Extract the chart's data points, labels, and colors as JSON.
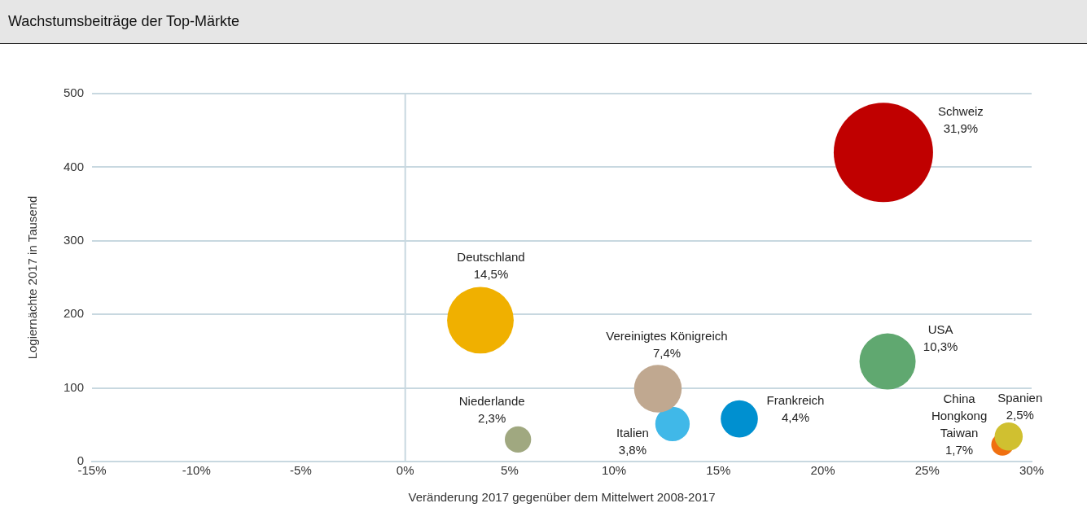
{
  "chart_data": {
    "type": "bubble",
    "title": "Wachstumsbeiträge der Top-Märkte",
    "xlabel": "Veränderung 2017 gegenüber dem Mittelwert 2008-2017",
    "ylabel": "Logiernächte 2017 in Tausend",
    "xlim": [
      -15,
      30
    ],
    "xticks": [
      {
        "value": -15,
        "label": "-15%"
      },
      {
        "value": -10,
        "label": "-10%"
      },
      {
        "value": -5,
        "label": "-5%"
      },
      {
        "value": 0,
        "label": "0%"
      },
      {
        "value": 5,
        "label": "5%"
      },
      {
        "value": 10,
        "label": "10%"
      },
      {
        "value": 15,
        "label": "15%"
      },
      {
        "value": 20,
        "label": "20%"
      },
      {
        "value": 25,
        "label": "25%"
      },
      {
        "value": 30,
        "label": "30%"
      }
    ],
    "ylim": [
      0,
      500
    ],
    "yticks": [
      0,
      100,
      200,
      300,
      400,
      500
    ],
    "grid": "y",
    "ref_lines": [
      {
        "axis": "x",
        "value": 0,
        "color": "#c8d8e0"
      }
    ],
    "annotations": [
      "31,9%",
      "14,5%",
      "7,4%",
      "3,8%",
      "4,4%",
      "2,3%",
      "10,3%",
      "2,5%",
      "1,7%"
    ],
    "series": [
      {
        "name": "Schweiz",
        "color": "#c00000",
        "x": [
          22.9
        ],
        "values": [
          420
        ],
        "sizes": [
          1
        ]
      },
      {
        "name": "Deutschland",
        "color": "#f0b000",
        "x": [
          3.6
        ],
        "values": [
          192
        ],
        "sizes": [
          0.45
        ]
      },
      {
        "name": "Vereinigtes Königreich",
        "color": "#c0a890",
        "x": [
          12.1
        ],
        "values": [
          99
        ],
        "sizes": [
          0.23
        ]
      },
      {
        "name": "Italien",
        "color": "#40b8e8",
        "x": [
          12.8
        ],
        "values": [
          51
        ],
        "sizes": [
          0.12
        ]
      },
      {
        "name": "Frankreich",
        "color": "#0090d0",
        "x": [
          16
        ],
        "values": [
          58
        ],
        "sizes": [
          0.14
        ]
      },
      {
        "name": "Niederlande",
        "color": "#a0a880",
        "x": [
          5.4
        ],
        "values": [
          30
        ],
        "sizes": [
          0.07
        ]
      },
      {
        "name": "USA",
        "color": "#60a870",
        "x": [
          23.1
        ],
        "values": [
          136
        ],
        "sizes": [
          0.32
        ]
      },
      {
        "name": "Spanien",
        "color": "#d0c030",
        "x": [
          28.9
        ],
        "values": [
          34
        ],
        "sizes": [
          0.08
        ]
      },
      {
        "name": "China Hongkong Taiwan",
        "color": "#f07010",
        "x": [
          28.6
        ],
        "values": [
          23
        ],
        "sizes": [
          0.05
        ]
      }
    ]
  }
}
